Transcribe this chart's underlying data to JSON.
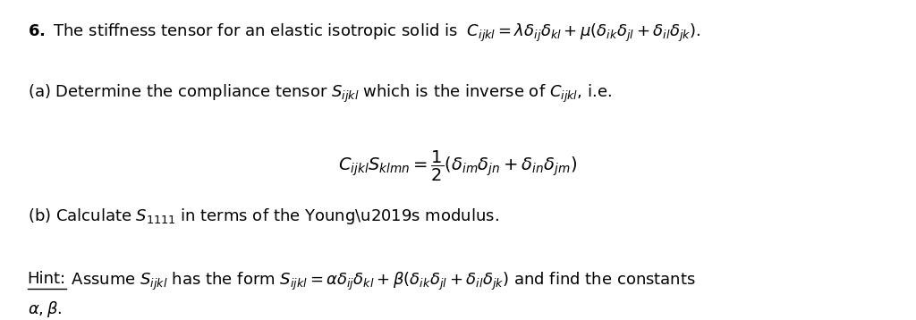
{
  "background_color": "#ffffff",
  "figsize": [
    10.24,
    3.58
  ],
  "dpi": 100,
  "fs": 13,
  "fs_eq": 14
}
